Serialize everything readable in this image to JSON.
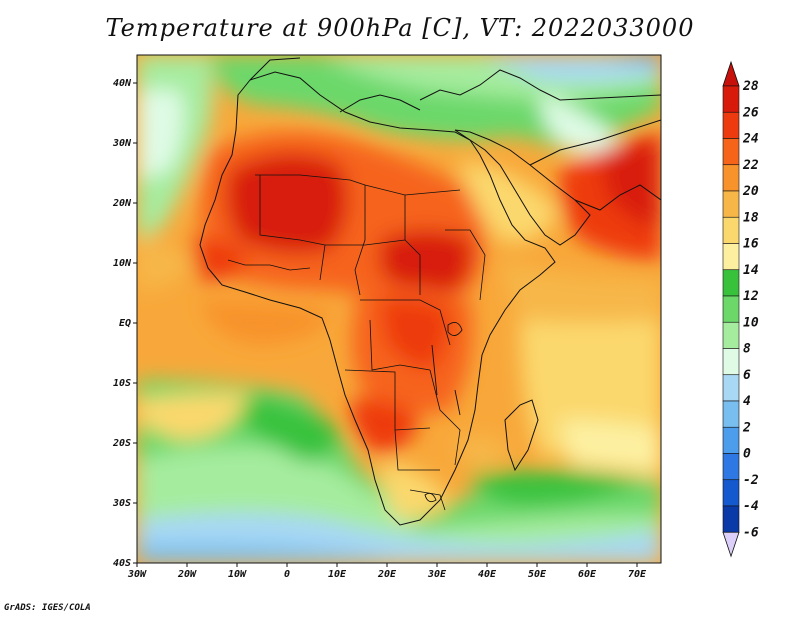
{
  "title": "Temperature at 900hPa [C], VT: 2022033000",
  "credit": "GrADS: IGES/COLA",
  "lon_labels": [
    "30W",
    "20W",
    "10W",
    "0",
    "10E",
    "20E",
    "30E",
    "40E",
    "50E",
    "60E",
    "70E"
  ],
  "lat_labels": [
    "40N",
    "30N",
    "20N",
    "10N",
    "EQ",
    "10S",
    "20S",
    "30S",
    "40S"
  ],
  "colorbar": {
    "labels": [
      "28",
      "26",
      "24",
      "22",
      "20",
      "18",
      "16",
      "14",
      "12",
      "10",
      "8",
      "6",
      "4",
      "2",
      "0",
      "-2",
      "-4",
      "-6"
    ],
    "colors": [
      "#d81a0a",
      "#ee3a0f",
      "#f6641a",
      "#f8932b",
      "#f7b748",
      "#fbd86d",
      "#fcf0a0",
      "#38c23c",
      "#6cd86a",
      "#a6ec9f",
      "#dffbe6",
      "#a8d8f4",
      "#78bff0",
      "#4d9ded",
      "#2d78e2",
      "#1559cf",
      "#0a3aa8",
      "#081f7a"
    ],
    "top_color": "#c8100a",
    "bottom_color": "#dcd0fb"
  }
}
